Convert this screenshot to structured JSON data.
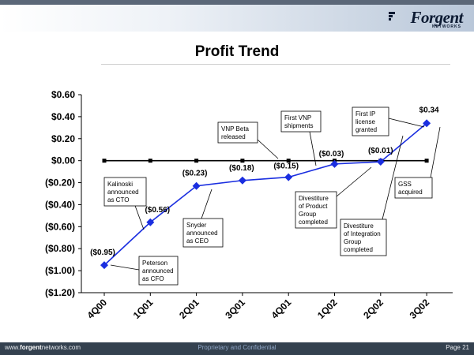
{
  "header": {
    "logo_text": "Forgent",
    "logo_subtext": "NETWORKS"
  },
  "title": "Profit Trend",
  "footer": {
    "website_prefix": "www.",
    "website_brand": "forgent",
    "website_suffix": "networks.com",
    "confidential": "Proprietary and Confidential",
    "page": "Page 21"
  },
  "colors": {
    "series": "#1a2ee0",
    "zero_line": "#000000",
    "footer": "#34414f"
  },
  "chart_data": {
    "type": "line",
    "title": "Profit Trend",
    "categories": [
      "4Q00",
      "1Q01",
      "2Q01",
      "3Q01",
      "4Q01",
      "1Q02",
      "2Q02",
      "3Q02"
    ],
    "series": [
      {
        "values": [
          -0.95,
          -0.56,
          -0.23,
          -0.18,
          -0.15,
          -0.03,
          -0.01,
          0.34
        ],
        "labels": [
          "($0.95)",
          "($0.56)",
          "($0.23)",
          "($0.18)",
          "($0.15)",
          "($0.03)",
          "($0.01)",
          "$0.34"
        ]
      }
    ],
    "zero_line_series": [
      0,
      0,
      0,
      0,
      0,
      0,
      0,
      0
    ],
    "ylim": [
      -1.2,
      0.6
    ],
    "yticks": [
      0.6,
      0.4,
      0.2,
      0.0,
      -0.2,
      -0.4,
      -0.6,
      -0.8,
      -1.0,
      -1.2
    ],
    "ytick_labels": [
      "$0.60",
      "$0.40",
      "$0.20",
      "$0.00",
      "($0.20)",
      "($0.40)",
      "($0.60)",
      "($0.80)",
      "($1.00)",
      "($1.20)"
    ],
    "grid": false,
    "legend": "none",
    "annotations": [
      {
        "lines": [
          "Peterson",
          "announced",
          "as CFO"
        ],
        "point": 0
      },
      {
        "lines": [
          "Kalinoski",
          "announced",
          "as CTO"
        ],
        "point": 1
      },
      {
        "lines": [
          "Snyder",
          "announced",
          "as CEO"
        ],
        "point": 2
      },
      {
        "lines": [
          "VNP Beta",
          "released"
        ],
        "point": 4
      },
      {
        "lines": [
          "First VNP",
          "shipments"
        ],
        "point": 5
      },
      {
        "lines": [
          "Divestiture",
          "of Product",
          "Group",
          "completed"
        ],
        "point": 6
      },
      {
        "lines": [
          "First IP",
          "license",
          "granted"
        ],
        "point": 7
      },
      {
        "lines": [
          "Divestiture",
          "of Integration",
          "Group",
          "completed"
        ],
        "point": 7
      },
      {
        "lines": [
          "GSS",
          "acquired"
        ],
        "point": 7
      }
    ]
  }
}
